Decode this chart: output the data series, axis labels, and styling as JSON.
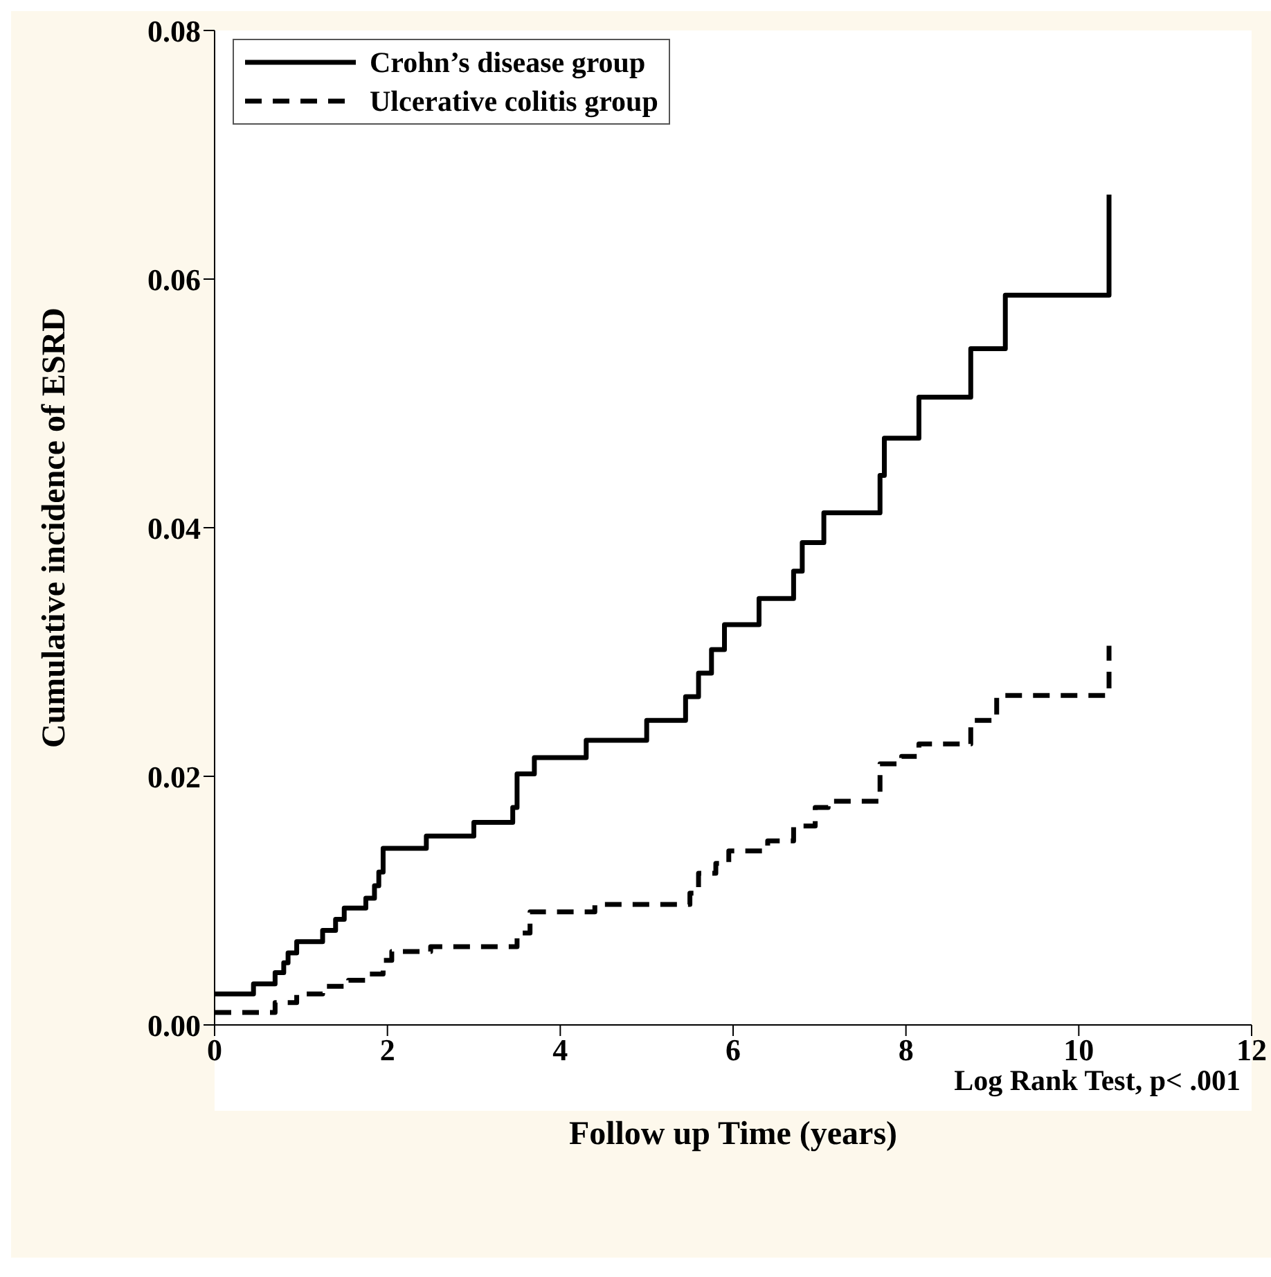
{
  "chart_data": {
    "type": "step",
    "xlabel": "Follow up Time (years)",
    "ylabel": "Cumulative incidence of ESRD",
    "xlim": [
      0,
      12
    ],
    "xticks": [
      0,
      2,
      4,
      6,
      8,
      10,
      12
    ],
    "ylim": [
      0,
      0.08
    ],
    "yticks": [
      {
        "value": 0,
        "label": "0.00"
      },
      {
        "value": 0.02,
        "label": "0.02"
      },
      {
        "value": 0.04,
        "label": "0.04"
      },
      {
        "value": 0.06,
        "label": "0.06"
      },
      {
        "value": 0.08,
        "label": "0.08"
      }
    ],
    "legend": "top left",
    "grid": false,
    "annotations": [
      "Log Rank Test, p<  .001"
    ],
    "series": [
      {
        "name": "Crohn’s disease group",
        "color": "#000000",
        "line_style": "solid",
        "x": [
          0,
          0.45,
          0.7,
          0.8,
          0.85,
          0.95,
          1.25,
          1.4,
          1.5,
          1.75,
          1.85,
          1.9,
          1.95,
          2.45,
          3.0,
          3.45,
          3.5,
          3.7,
          4.3,
          5.0,
          5.45,
          5.6,
          5.75,
          5.9,
          6.3,
          6.7,
          6.8,
          7.05,
          7.7,
          7.75,
          8.15,
          8.75,
          9.15,
          10.35
        ],
        "values": [
          0.0025,
          0.0033,
          0.0042,
          0.005,
          0.0058,
          0.0067,
          0.0076,
          0.0085,
          0.0094,
          0.0102,
          0.0112,
          0.0123,
          0.0142,
          0.0152,
          0.0163,
          0.0175,
          0.0202,
          0.0215,
          0.0229,
          0.0245,
          0.0264,
          0.0283,
          0.0302,
          0.0322,
          0.0343,
          0.0365,
          0.0388,
          0.0412,
          0.0442,
          0.0472,
          0.0505,
          0.0544,
          0.0587,
          0.0668
        ]
      },
      {
        "name": "Ulcerative colitis group",
        "color": "#000000",
        "line_style": "dashed",
        "x": [
          0,
          0.7,
          0.95,
          1.25,
          1.55,
          1.75,
          1.95,
          2.05,
          2.5,
          3.5,
          3.65,
          4.4,
          5.5,
          5.6,
          5.8,
          5.95,
          6.4,
          6.7,
          6.95,
          7.1,
          7.7,
          7.95,
          8.15,
          8.75,
          9.05,
          10.35
        ],
        "values": [
          0.001,
          0.0018,
          0.0025,
          0.0031,
          0.0036,
          0.0041,
          0.0052,
          0.0059,
          0.0063,
          0.0074,
          0.0091,
          0.0097,
          0.0106,
          0.0122,
          0.013,
          0.014,
          0.0148,
          0.016,
          0.0175,
          0.018,
          0.021,
          0.0216,
          0.0226,
          0.0245,
          0.0265,
          0.0305
        ]
      }
    ]
  }
}
